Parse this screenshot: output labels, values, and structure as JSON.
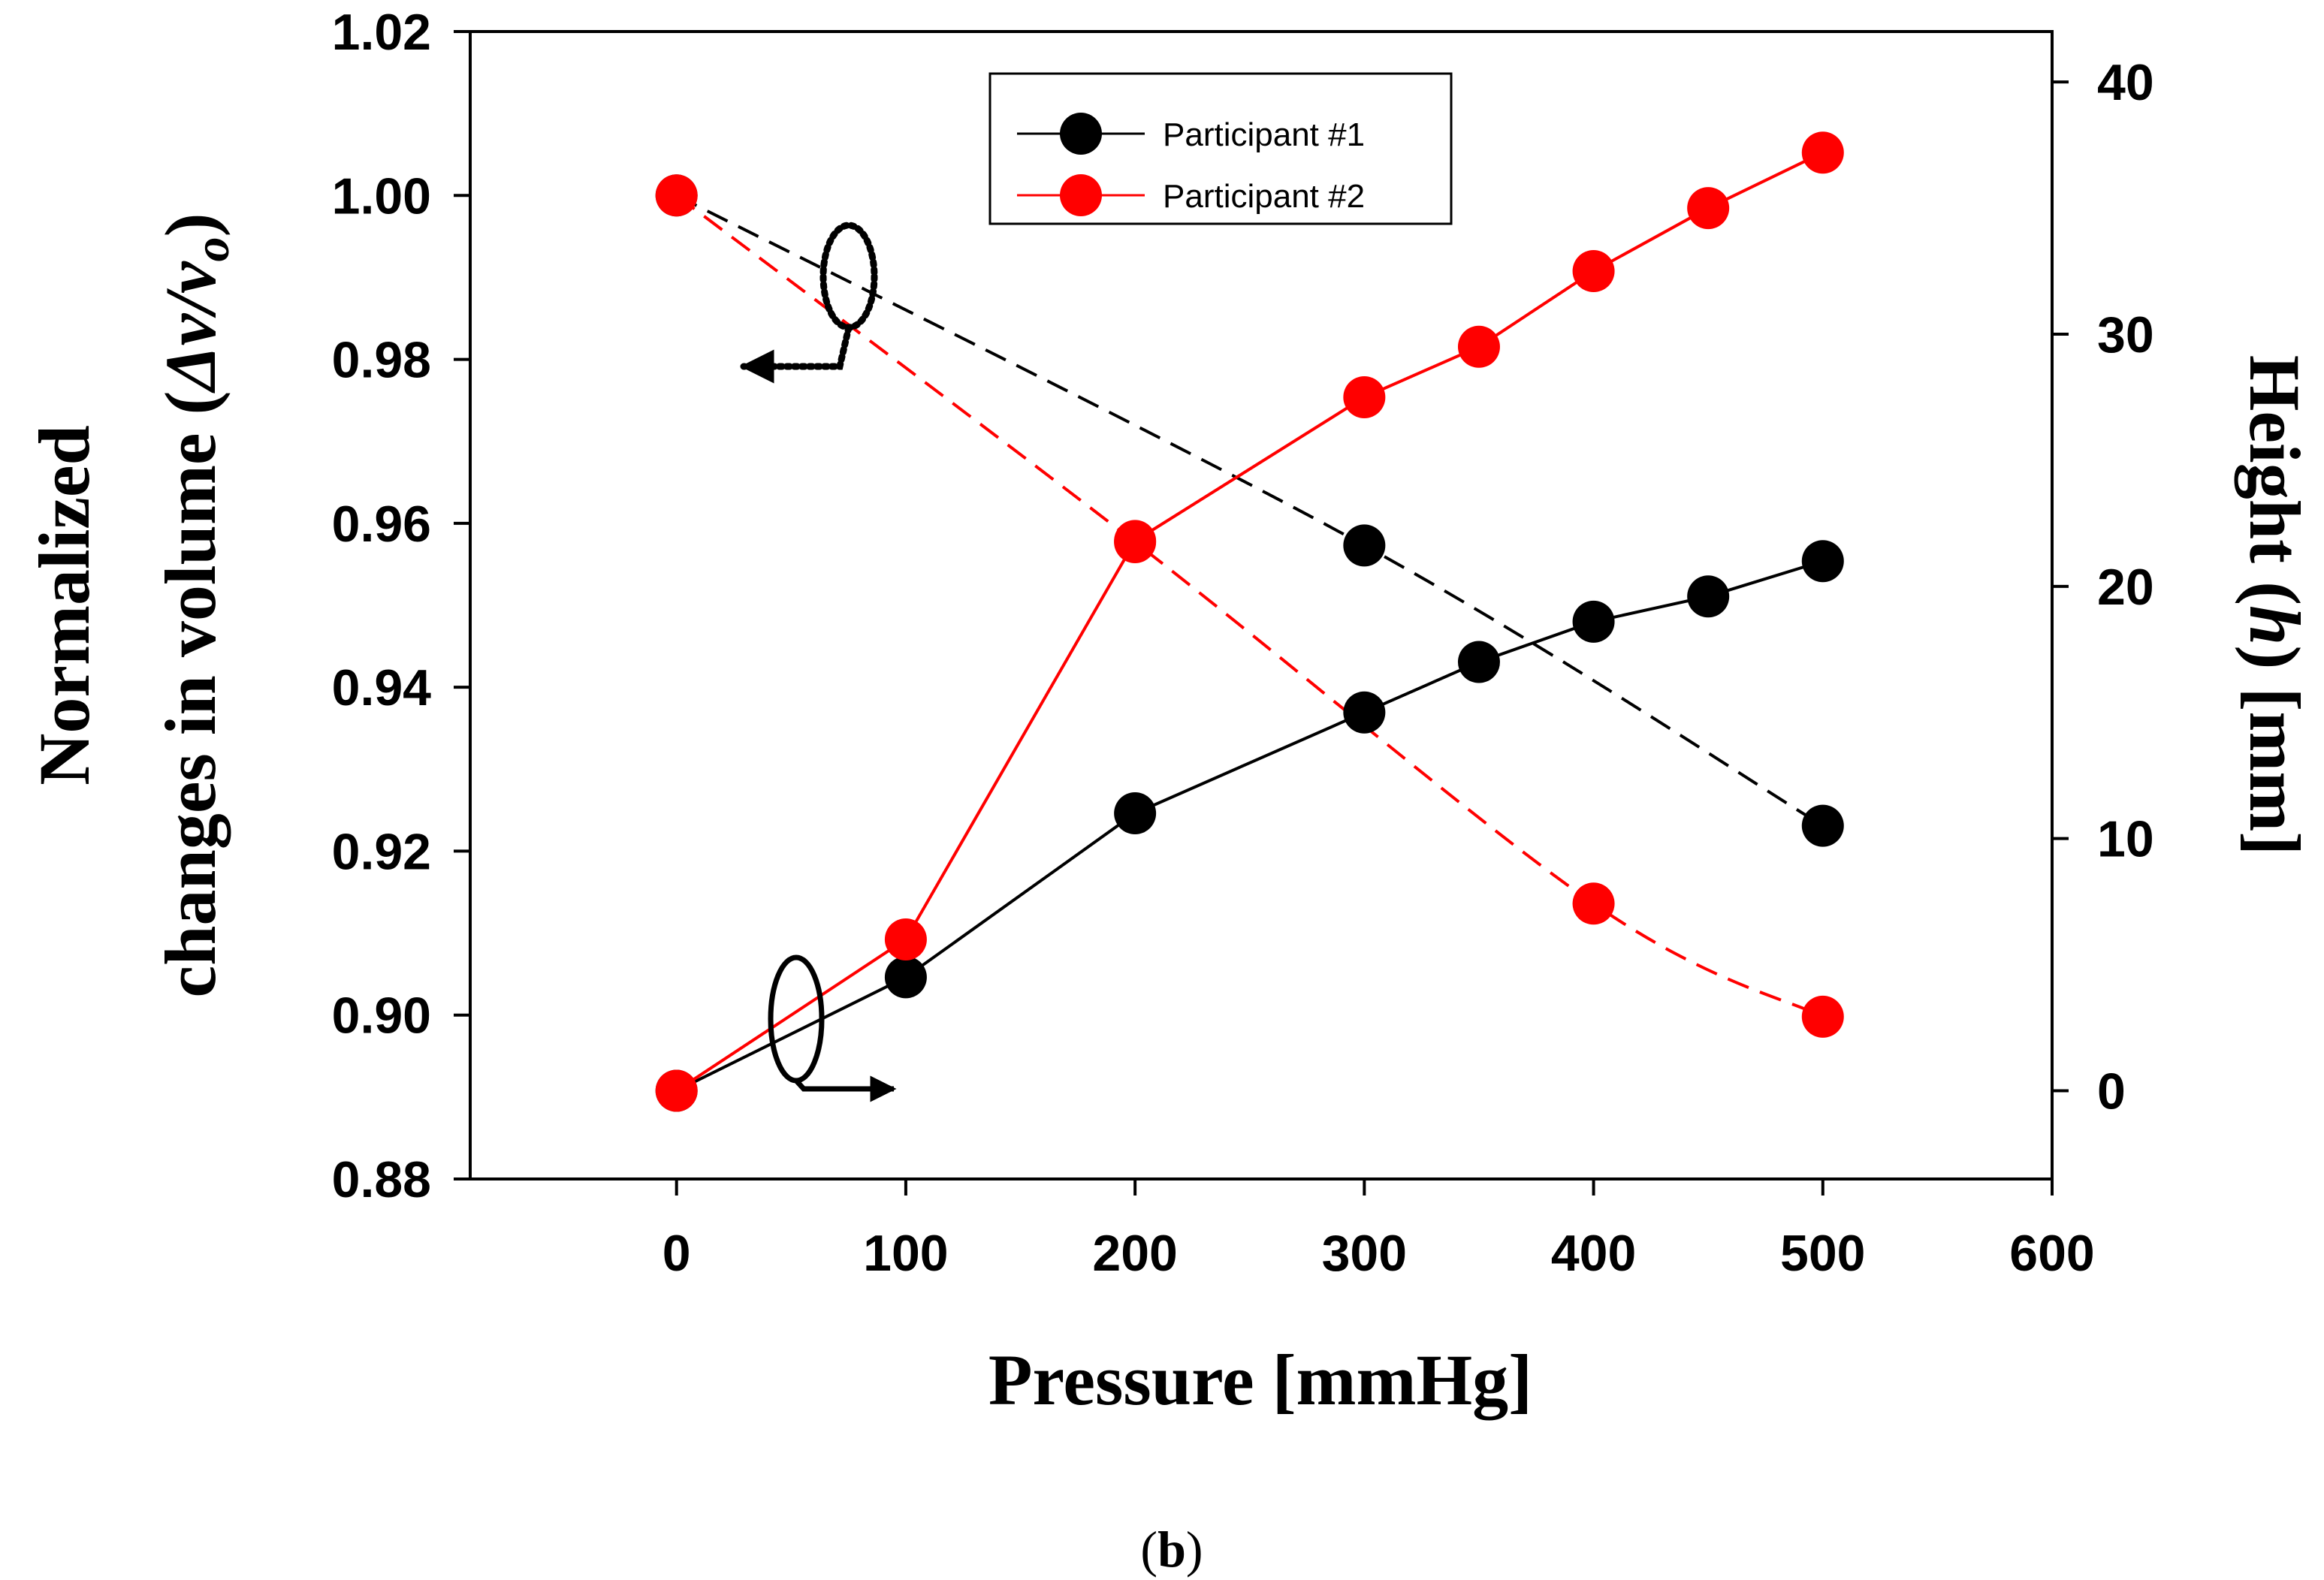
{
  "chart_data": {
    "type": "line",
    "x_axis": {
      "label": "Pressure [mmHg]",
      "range": [
        -90,
        600
      ],
      "ticks": [
        0,
        100,
        200,
        300,
        400,
        500,
        600
      ]
    },
    "y_axis_left": {
      "label_line1": "Normalized",
      "label_line2_prefix": "changes in volume (",
      "label_line2_delta": "Δv/v",
      "label_line2_sub": "o",
      "label_line2_suffix": ")",
      "range": [
        0.88,
        1.02
      ],
      "ticks": [
        "0.88",
        "0.90",
        "0.92",
        "0.94",
        "0.96",
        "0.98",
        "1.00",
        "1.02"
      ]
    },
    "y_axis_right": {
      "label_prefix": "Height (",
      "label_var": "h",
      "label_suffix": ") [mm]",
      "range": [
        -3.5,
        42
      ],
      "ticks": [
        "0",
        "10",
        "20",
        "30",
        "40"
      ]
    },
    "legend": [
      {
        "name": "Participant #1",
        "color": "#000000"
      },
      {
        "name": "Participant #2",
        "color": "#ff0000"
      }
    ],
    "series": [
      {
        "name": "Participant #1 volume",
        "legend_ref": "Participant #1",
        "axis": "left",
        "style": "dashed",
        "color": "#000000",
        "x": [
          0,
          300,
          500
        ],
        "y": [
          1.0,
          0.9573,
          0.9231
        ]
      },
      {
        "name": "Participant #2 volume",
        "legend_ref": "Participant #2",
        "axis": "left",
        "style": "dashed",
        "color": "#ff0000",
        "x": [
          0,
          200,
          400,
          500
        ],
        "y": [
          1.0,
          0.9577,
          0.9136,
          0.8998
        ]
      },
      {
        "name": "Participant #1 height",
        "legend_ref": "Participant #1",
        "axis": "right",
        "style": "solid",
        "color": "#000000",
        "x": [
          0,
          100,
          200,
          300,
          350,
          400,
          450,
          500
        ],
        "y": [
          0,
          4.5,
          11.0,
          15.0,
          17.0,
          18.6,
          19.6,
          21.0
        ]
      },
      {
        "name": "Participant #2 height",
        "legend_ref": "Participant #2",
        "axis": "right",
        "style": "solid",
        "color": "#ff0000",
        "x": [
          0,
          100,
          200,
          300,
          350,
          400,
          450,
          500
        ],
        "y": [
          0,
          6.0,
          21.8,
          27.5,
          29.5,
          32.5,
          35.0,
          37.2
        ]
      }
    ],
    "caption": {
      "open": "(",
      "letter": "b",
      "close": ")"
    }
  }
}
